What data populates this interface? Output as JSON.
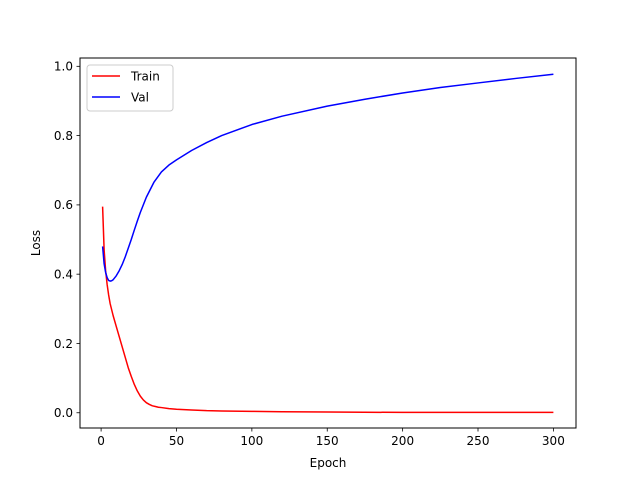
{
  "chart_data": {
    "type": "line",
    "xlabel": "Epoch",
    "ylabel": "Loss",
    "xlim": [
      -14,
      315
    ],
    "ylim": [
      -0.044,
      1.024
    ],
    "xticks": [
      0,
      50,
      100,
      150,
      200,
      250,
      300
    ],
    "yticks": [
      0.0,
      0.2,
      0.4,
      0.6,
      0.8,
      1.0
    ],
    "xtick_labels": [
      "0",
      "50",
      "100",
      "150",
      "200",
      "250",
      "300"
    ],
    "ytick_labels": [
      "0.0",
      "0.2",
      "0.4",
      "0.6",
      "0.8",
      "1.0"
    ],
    "grid": false,
    "legend_position": "top-left",
    "series": [
      {
        "name": "Train",
        "color": "#ff0000",
        "x": [
          1,
          2,
          3,
          4,
          5,
          6,
          8,
          10,
          12,
          14,
          16,
          18,
          20,
          22,
          24,
          26,
          28,
          30,
          32,
          34,
          36,
          38,
          40,
          45,
          50,
          60,
          70,
          80,
          100,
          120,
          150,
          200,
          250,
          300
        ],
        "y": [
          0.595,
          0.47,
          0.41,
          0.37,
          0.34,
          0.315,
          0.28,
          0.25,
          0.22,
          0.19,
          0.16,
          0.13,
          0.105,
          0.082,
          0.063,
          0.048,
          0.037,
          0.029,
          0.024,
          0.02,
          0.018,
          0.016,
          0.015,
          0.012,
          0.01,
          0.008,
          0.006,
          0.005,
          0.004,
          0.003,
          0.002,
          0.001,
          0.001,
          0.001
        ]
      },
      {
        "name": "Val",
        "color": "#0000ff",
        "x": [
          1,
          2,
          3,
          4,
          5,
          6,
          7,
          8,
          10,
          12,
          14,
          16,
          18,
          20,
          22,
          24,
          26,
          28,
          30,
          35,
          40,
          45,
          50,
          60,
          70,
          80,
          100,
          120,
          150,
          175,
          200,
          225,
          250,
          275,
          300
        ],
        "y": [
          0.48,
          0.43,
          0.405,
          0.39,
          0.382,
          0.38,
          0.381,
          0.384,
          0.395,
          0.41,
          0.428,
          0.45,
          0.475,
          0.5,
          0.527,
          0.553,
          0.578,
          0.6,
          0.622,
          0.665,
          0.695,
          0.715,
          0.73,
          0.757,
          0.78,
          0.8,
          0.832,
          0.856,
          0.885,
          0.905,
          0.923,
          0.939,
          0.952,
          0.965,
          0.977
        ]
      }
    ]
  }
}
